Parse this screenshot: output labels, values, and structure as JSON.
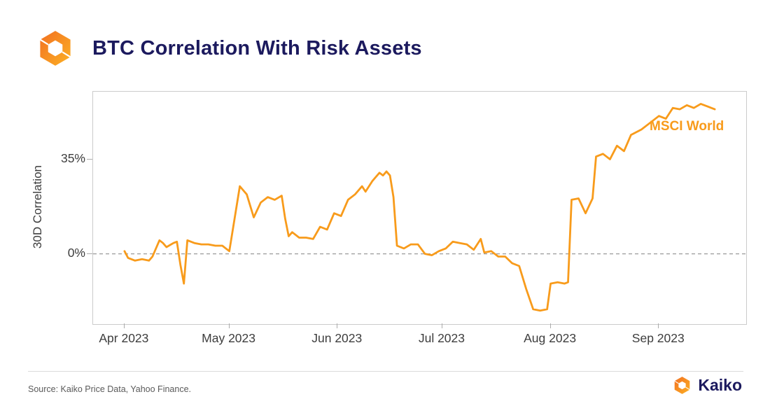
{
  "header": {
    "title": "BTC Correlation With Risk Assets"
  },
  "chart_data": {
    "type": "line",
    "title": "BTC Correlation With Risk Assets",
    "ylabel": "30D Correlation",
    "xlabel": "",
    "x_range": [
      "2023-03-23",
      "2023-09-26"
    ],
    "ylim": [
      -26,
      60
    ],
    "zero_line": 0,
    "grid": "zero-dashed-line-only",
    "legend_position": "inline-top-right",
    "y_ticks": [
      {
        "value": 35,
        "label": "35%"
      },
      {
        "value": 0,
        "label": "0%"
      }
    ],
    "x_ticks": [
      {
        "date": "2023-04-01",
        "label": "Apr 2023"
      },
      {
        "date": "2023-05-01",
        "label": "May 2023"
      },
      {
        "date": "2023-06-01",
        "label": "Jun 2023"
      },
      {
        "date": "2023-07-01",
        "label": "Jul 2023"
      },
      {
        "date": "2023-08-01",
        "label": "Aug 2023"
      },
      {
        "date": "2023-09-01",
        "label": "Sep 2023"
      }
    ],
    "series": [
      {
        "name": "MSCI World",
        "color": "#F89B1B",
        "points": [
          [
            "2023-04-01",
            1
          ],
          [
            "2023-04-02",
            -1.5
          ],
          [
            "2023-04-04",
            -2.5
          ],
          [
            "2023-04-06",
            -2
          ],
          [
            "2023-04-08",
            -2.5
          ],
          [
            "2023-04-09",
            -1
          ],
          [
            "2023-04-11",
            5
          ],
          [
            "2023-04-12",
            4
          ],
          [
            "2023-04-13",
            2.5
          ],
          [
            "2023-04-15",
            4
          ],
          [
            "2023-04-16",
            4.5
          ],
          [
            "2023-04-17",
            -4
          ],
          [
            "2023-04-18",
            -11
          ],
          [
            "2023-04-19",
            5
          ],
          [
            "2023-04-21",
            4
          ],
          [
            "2023-04-23",
            3.5
          ],
          [
            "2023-04-25",
            3.5
          ],
          [
            "2023-04-27",
            3
          ],
          [
            "2023-04-29",
            3
          ],
          [
            "2023-05-01",
            1
          ],
          [
            "2023-05-04",
            25
          ],
          [
            "2023-05-06",
            22
          ],
          [
            "2023-05-08",
            13.5
          ],
          [
            "2023-05-10",
            19
          ],
          [
            "2023-05-12",
            21
          ],
          [
            "2023-05-14",
            20
          ],
          [
            "2023-05-16",
            21.5
          ],
          [
            "2023-05-17",
            13
          ],
          [
            "2023-05-18",
            6.5
          ],
          [
            "2023-05-19",
            8
          ],
          [
            "2023-05-21",
            6
          ],
          [
            "2023-05-23",
            6
          ],
          [
            "2023-05-25",
            5.5
          ],
          [
            "2023-05-27",
            10
          ],
          [
            "2023-05-29",
            9
          ],
          [
            "2023-05-31",
            15
          ],
          [
            "2023-06-02",
            14
          ],
          [
            "2023-06-04",
            20
          ],
          [
            "2023-06-06",
            22
          ],
          [
            "2023-06-08",
            25
          ],
          [
            "2023-06-09",
            23
          ],
          [
            "2023-06-11",
            27
          ],
          [
            "2023-06-13",
            30
          ],
          [
            "2023-06-14",
            29
          ],
          [
            "2023-06-15",
            30.5
          ],
          [
            "2023-06-16",
            29
          ],
          [
            "2023-06-17",
            21
          ],
          [
            "2023-06-18",
            3
          ],
          [
            "2023-06-20",
            2
          ],
          [
            "2023-06-22",
            3.5
          ],
          [
            "2023-06-24",
            3.5
          ],
          [
            "2023-06-26",
            0
          ],
          [
            "2023-06-28",
            -0.5
          ],
          [
            "2023-06-30",
            1
          ],
          [
            "2023-07-02",
            2
          ],
          [
            "2023-07-04",
            4.5
          ],
          [
            "2023-07-06",
            4
          ],
          [
            "2023-07-08",
            3.5
          ],
          [
            "2023-07-10",
            1.5
          ],
          [
            "2023-07-12",
            5.5
          ],
          [
            "2023-07-13",
            0.5
          ],
          [
            "2023-07-15",
            1
          ],
          [
            "2023-07-17",
            -1
          ],
          [
            "2023-07-19",
            -1
          ],
          [
            "2023-07-21",
            -3.5
          ],
          [
            "2023-07-23",
            -4.5
          ],
          [
            "2023-07-25",
            -13
          ],
          [
            "2023-07-27",
            -20.5
          ],
          [
            "2023-07-29",
            -21
          ],
          [
            "2023-07-31",
            -20.5
          ],
          [
            "2023-08-01",
            -11
          ],
          [
            "2023-08-03",
            -10.5
          ],
          [
            "2023-08-05",
            -11
          ],
          [
            "2023-08-06",
            -10.5
          ],
          [
            "2023-08-07",
            20
          ],
          [
            "2023-08-09",
            20.5
          ],
          [
            "2023-08-11",
            15
          ],
          [
            "2023-08-13",
            20.5
          ],
          [
            "2023-08-14",
            36
          ],
          [
            "2023-08-16",
            37
          ],
          [
            "2023-08-18",
            35
          ],
          [
            "2023-08-20",
            40
          ],
          [
            "2023-08-22",
            38
          ],
          [
            "2023-08-24",
            44
          ],
          [
            "2023-08-27",
            46
          ],
          [
            "2023-08-29",
            48
          ],
          [
            "2023-09-01",
            51
          ],
          [
            "2023-09-03",
            50
          ],
          [
            "2023-09-05",
            54
          ],
          [
            "2023-09-07",
            53.5
          ],
          [
            "2023-09-09",
            55
          ],
          [
            "2023-09-11",
            54
          ],
          [
            "2023-09-13",
            55.5
          ],
          [
            "2023-09-15",
            54.5
          ],
          [
            "2023-09-17",
            53.5
          ]
        ]
      }
    ]
  },
  "footer": {
    "source": "Source: Kaiko Price Data, Yahoo Finance.",
    "brand": "Kaiko"
  },
  "icons": {
    "header_logo": "kaiko-hexagon-logo",
    "footer_logo": "kaiko-hexagon-logo"
  },
  "colors": {
    "orange": "#F89B1B",
    "navy": "#1C1A5E",
    "grid": "#CBCBCB",
    "zeroline": "#9A9A9A",
    "axistext": "#3D3D3D",
    "sourcetext": "#5A5A5A",
    "divider": "#DBDBDB",
    "logo_gradient_start": "#F26F21",
    "logo_gradient_end": "#FCB124"
  }
}
